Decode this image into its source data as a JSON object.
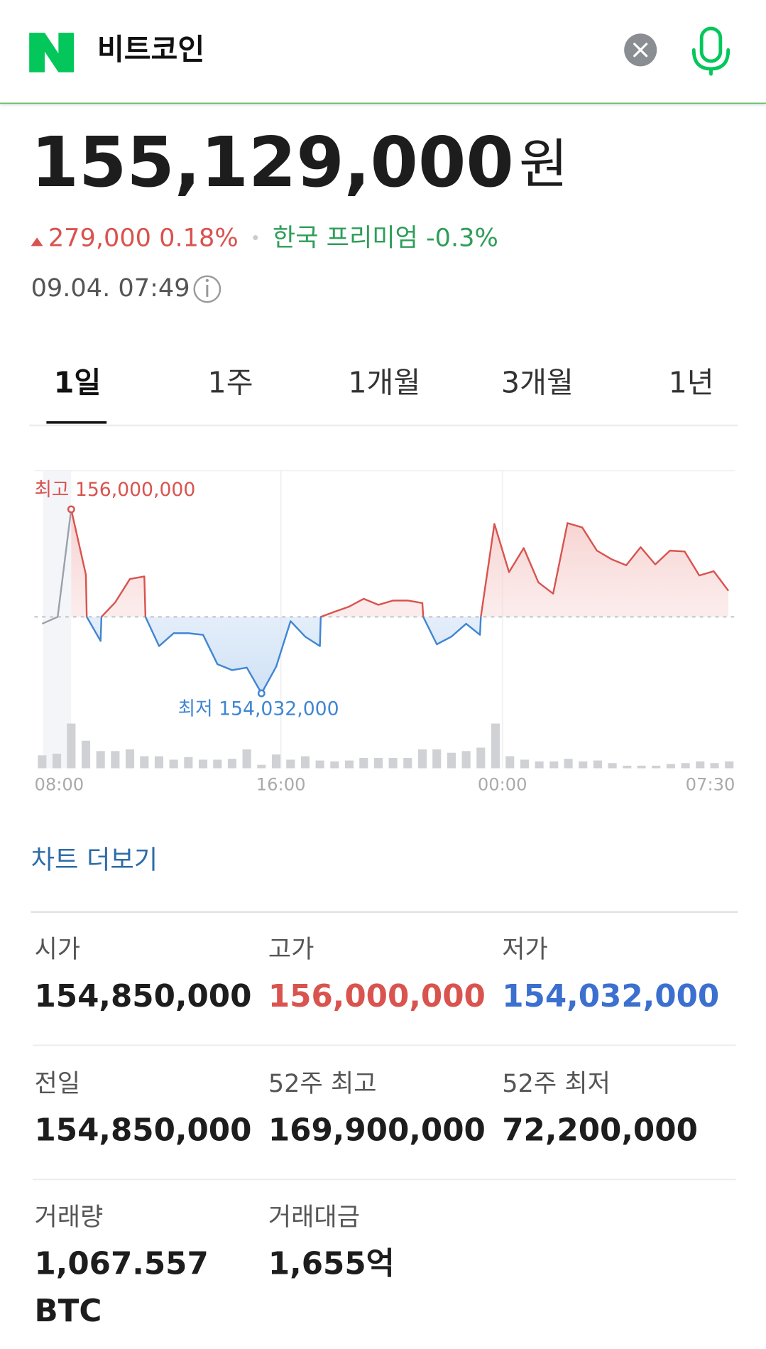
{
  "header": {
    "title": "비트코인"
  },
  "price": {
    "value": "155,129,000",
    "unit": "원",
    "change": "279,000 0.18%",
    "premium": "한국 프리미엄 -0.3%",
    "time": "09.04. 07:49"
  },
  "tabs": [
    "1일",
    "1주",
    "1개월",
    "3개월",
    "1년"
  ],
  "chart_data": {
    "type": "line",
    "x": [
      7.38,
      7.94,
      8.43,
      8.96,
      8.99,
      9.49,
      9.52,
      10.02,
      10.55,
      11.07,
      11.11,
      11.6,
      12.13,
      12.66,
      13.19,
      13.71,
      14.24,
      14.77,
      15.3,
      15.83,
      16.35,
      16.88,
      17.41,
      17.44,
      17.94,
      18.47,
      18.99,
      19.52,
      20.05,
      20.58,
      21.11,
      21.14,
      21.63,
      22.16,
      22.69,
      23.19,
      23.22,
      23.71,
      24.24,
      24.77,
      25.3,
      25.83,
      26.35,
      26.88,
      27.41,
      27.94,
      28.47,
      28.99,
      29.52,
      30.05,
      30.58,
      31.11,
      31.63,
      32.16
    ],
    "series": [
      {
        "values": [
          154776000,
          154850000,
          156000000,
          155301000,
          154850000,
          154592000,
          154850000,
          155006000,
          155255000,
          155282000,
          154850000,
          154537000,
          154675000,
          154675000,
          154657000,
          154344000,
          154280000,
          154307000,
          154032000,
          154316000,
          154804000,
          154638000,
          154537000,
          154850000,
          154905000,
          154960000,
          155043000,
          154979000,
          155025000,
          155025000,
          154997000,
          154850000,
          154556000,
          154638000,
          154776000,
          154657000,
          154850000,
          155844000,
          155328000,
          155586000,
          155218000,
          155098000,
          155853000,
          155807000,
          155558000,
          155466000,
          155402000,
          155595000,
          155411000,
          155558000,
          155549000,
          155292000,
          155338000,
          155129000
        ]
      }
    ],
    "baseline": 154850000,
    "colors": {
      "up": "#d9534f",
      "down": "#3f86d4",
      "previous": "#9aa1ab"
    },
    "high_label": "최고 156,000,000",
    "low_label": "최저 154,032,000",
    "xlim": [
      7.1,
      32.4
    ],
    "ylim": [
      153810000,
      156414000
    ],
    "xticks": [
      {
        "value": 8,
        "label": "08:00"
      },
      {
        "value": 16,
        "label": "16:00"
      },
      {
        "value": 24,
        "label": "00:00"
      },
      {
        "value": 31.5,
        "label": "07:30"
      }
    ],
    "volume": {
      "x": [
        7.38,
        7.91,
        8.43,
        8.96,
        9.49,
        10.02,
        10.55,
        11.07,
        11.6,
        12.13,
        12.66,
        13.19,
        13.71,
        14.24,
        14.77,
        15.3,
        15.83,
        16.35,
        16.88,
        17.41,
        17.94,
        18.47,
        18.99,
        19.52,
        20.05,
        20.58,
        21.11,
        21.63,
        22.16,
        22.69,
        23.22,
        23.75,
        24.27,
        24.8,
        25.33,
        25.86,
        26.38,
        26.91,
        27.44,
        27.97,
        28.5,
        29.02,
        29.55,
        30.08,
        30.61,
        31.14,
        31.66,
        32.19
      ],
      "values": [
        15,
        17,
        52,
        32,
        20,
        20,
        22,
        14,
        14,
        10,
        13,
        10,
        10,
        11,
        22,
        4,
        16,
        10,
        14,
        9,
        8,
        9,
        12,
        12,
        12,
        12,
        22,
        22,
        18,
        20,
        24,
        52,
        14,
        10,
        8,
        8,
        11,
        8,
        9,
        6,
        3,
        3,
        3,
        5,
        6,
        8,
        6,
        8
      ],
      "vlim": [
        0,
        60
      ],
      "color": "#cfd1d4"
    }
  },
  "more_link": "차트 더보기",
  "stats": [
    [
      {
        "label": "시가",
        "value": "154,850,000"
      },
      {
        "label": "고가",
        "value": "156,000,000"
      },
      {
        "label": "저가",
        "value": "154,032,000"
      }
    ],
    [
      {
        "label": "전일",
        "value": "154,850,000"
      },
      {
        "label": "52주 최고",
        "value": "169,900,000"
      },
      {
        "label": "52주 최저",
        "value": "72,200,000"
      }
    ],
    [
      {
        "label": "거래량",
        "value": "1,067.557",
        "unit": "BTC"
      },
      {
        "label": "거래대금",
        "value": "1,655억"
      }
    ]
  ]
}
